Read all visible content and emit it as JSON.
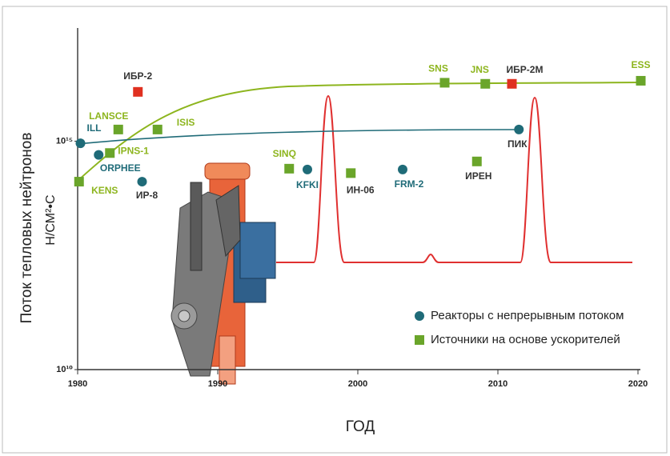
{
  "chart_data": {
    "type": "scatter",
    "x_label": "ГОД",
    "y_label": "Поток тепловых нейтронов",
    "y_unit": "Н/СМ²•С",
    "xlim": [
      1980,
      2020
    ],
    "xticks": [
      1980,
      1990,
      2000,
      2010,
      2020
    ],
    "ylim": [
      10000000000.0,
      3e+17
    ],
    "yticks": [
      {
        "value": 10000000000.0,
        "label": "10¹⁰"
      },
      {
        "value": 1000000000000000.0,
        "label": "10¹⁵"
      }
    ],
    "log_y": true,
    "legend": "lower right",
    "series": [
      {
        "name": "Реакторы с непрерывным потоком",
        "color": "#1f6b78",
        "marker": "circle",
        "labels": [
          "ILL",
          "ORPHEE",
          "ИР-8",
          "KFKI",
          "FRM-2",
          "ПИК"
        ],
        "label_colors": [
          "#1f6b78",
          "#1f6b78",
          "#333333",
          "#1f6b78",
          "#1f6b78",
          "#333333"
        ],
        "x": [
          1980.2,
          1981.5,
          1984.6,
          1996.4,
          2003.2,
          2011.5
        ],
        "values": [
          900000000000000.0,
          500000000000000.0,
          130000000000000.0,
          240000000000000.0,
          240000000000000.0,
          1800000000000000.0
        ]
      },
      {
        "name": "Источники на основе ускорителей",
        "color": "#6aa52a",
        "marker": "square",
        "labels": [
          "KENS",
          "IPNS-1",
          "LANSCE",
          "ISIS",
          "SINQ",
          "ИН-06",
          "ИРЕН",
          "SNS",
          "JNS",
          "ESS"
        ],
        "label_colors": [
          "#8db51e",
          "#8db51e",
          "#8db51e",
          "#8db51e",
          "#8db51e",
          "#333333",
          "#333333",
          "#8db51e",
          "#8db51e",
          "#8db51e"
        ],
        "x": [
          1980.1,
          1982.3,
          1982.9,
          1985.7,
          1995.1,
          1999.5,
          2008.5,
          2006.2,
          2009.1,
          2020.2
        ],
        "values": [
          130000000000000.0,
          550000000000000.0,
          1800000000000000.0,
          1800000000000000.0,
          250000000000000.0,
          200000000000000.0,
          360000000000000.0,
          1.9e+16,
          1.8e+16,
          2.1e+16
        ]
      },
      {
        "color": "#e03020",
        "marker": "square",
        "labels": [
          "ИБР-2",
          "ИБР-2М"
        ],
        "label_colors": [
          "#333333",
          "#333333"
        ],
        "x": [
          1984.3,
          2011.0
        ],
        "values": [
          1.2e+16,
          1.8e+16
        ]
      }
    ]
  }
}
